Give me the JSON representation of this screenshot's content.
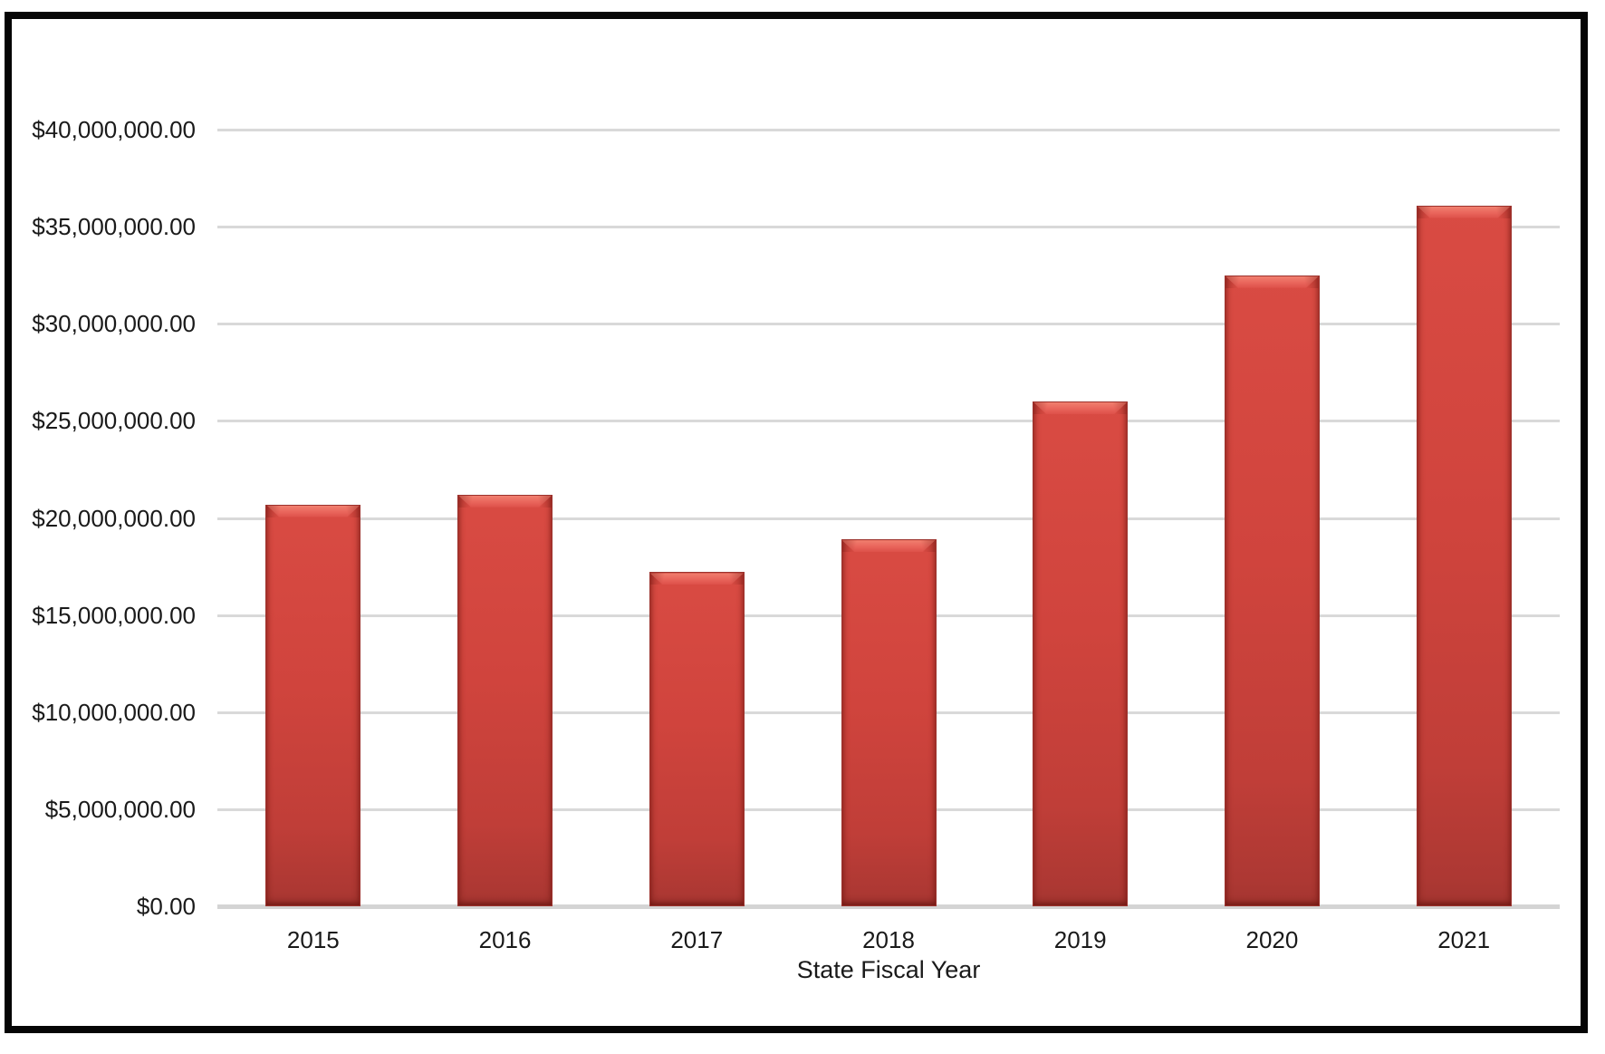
{
  "chart_data": {
    "type": "bar",
    "title": "",
    "xlabel": "State Fiscal Year",
    "ylabel": "",
    "categories": [
      "2015",
      "2016",
      "2017",
      "2018",
      "2019",
      "2020",
      "2021"
    ],
    "values": [
      20700000,
      21200000,
      17200000,
      18900000,
      26000000,
      32500000,
      36100000
    ],
    "ylim": [
      0,
      40000000
    ],
    "ytick_step": 5000000,
    "ytick_labels": [
      "$0.00",
      "$5,000,000.00",
      "$10,000,000.00",
      "$15,000,000.00",
      "$20,000,000.00",
      "$25,000,000.00",
      "$30,000,000.00",
      "$35,000,000.00",
      "$40,000,000.00"
    ],
    "grid": true,
    "legend": false,
    "bar_color": "#CE433C",
    "bar_highlight_color": "#EA675D",
    "gridline_color": "#D9D9D9",
    "axis_line_color": "#D4D4D4",
    "frame_border_color": "#050505"
  }
}
